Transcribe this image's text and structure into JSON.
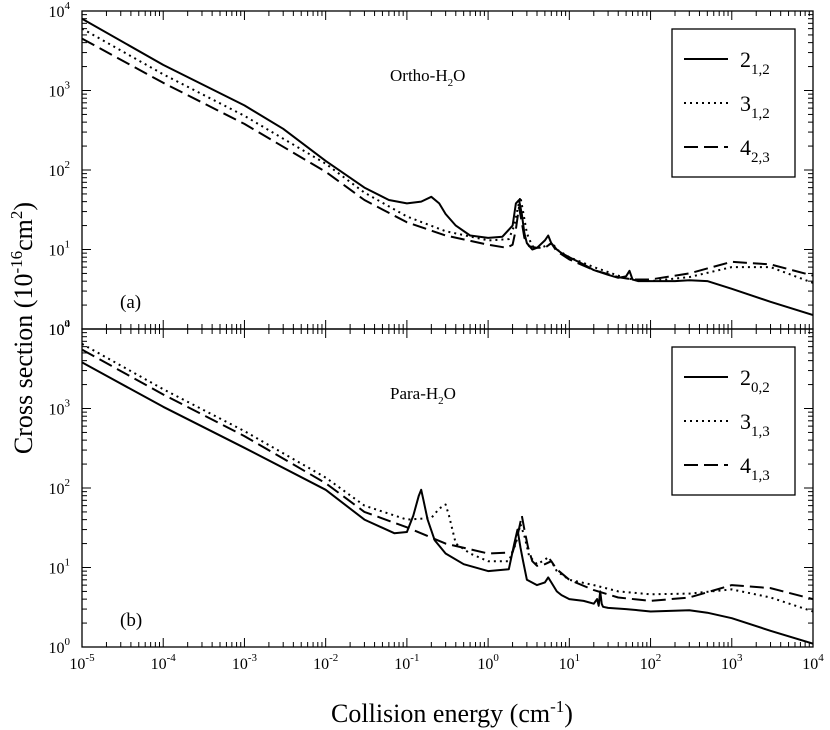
{
  "figure": {
    "xlabel": "Collision energy (cm",
    "xlabel_sup": "-1",
    "xlabel_end": ")",
    "ylabel": "Cross section (10",
    "ylabel_sup": "-16",
    "ylabel_mid": "cm",
    "ylabel_sup2": "2",
    "ylabel_end": ")"
  },
  "chart_data": [
    {
      "type": "line",
      "panel_label": "(a)",
      "annotation": "Ortho-H",
      "annotation_sub": "2",
      "annotation_end": "O",
      "xscale": "log",
      "yscale": "log",
      "xlim": [
        1e-05,
        10000.0
      ],
      "ylim": [
        1,
        10000.0
      ],
      "x_tick_labels": [
        "10-5",
        "10-4",
        "10-3",
        "10-2",
        "10-1",
        "100",
        "101",
        "102",
        "103",
        "104"
      ],
      "y_tick_labels": [
        "100",
        "101",
        "102",
        "103",
        "104"
      ],
      "legend_position": "top-right",
      "series": [
        {
          "name": "2",
          "sub": "1,2",
          "style": "solid",
          "x": [
            1e-05,
            0.0001,
            0.001,
            0.003,
            0.01,
            0.03,
            0.06,
            0.1,
            0.15,
            0.2,
            0.25,
            0.3,
            0.4,
            0.6,
            1,
            1.5,
            2,
            2.2,
            2.4,
            2.6,
            2.8,
            3,
            3.5,
            4,
            5,
            5.5,
            6,
            7,
            8,
            10,
            15,
            20,
            30,
            40,
            50,
            55,
            60,
            70,
            100,
            200,
            300,
            500,
            1000,
            3000,
            10000
          ],
          "y": [
            8000,
            2100,
            650,
            330,
            130,
            60,
            42,
            38,
            40,
            46,
            38,
            28,
            20,
            15,
            14,
            14.5,
            20,
            38,
            42,
            28,
            16,
            12,
            10,
            10.5,
            13,
            15,
            12,
            10,
            9,
            8,
            6.5,
            5.5,
            4.8,
            4.4,
            4.6,
            5.4,
            4.2,
            4,
            4,
            4,
            4.1,
            4,
            3.2,
            2.2,
            1.5
          ]
        },
        {
          "name": "3",
          "sub": "1,2",
          "style": "dotted",
          "x": [
            1e-05,
            0.0001,
            0.001,
            0.01,
            0.03,
            0.1,
            0.3,
            1,
            1.8,
            2.1,
            2.3,
            2.5,
            2.7,
            3,
            3.5,
            4.5,
            5.5,
            6.2,
            7,
            10,
            20,
            40,
            60,
            100,
            300,
            1000,
            3000,
            10000
          ],
          "y": [
            6000,
            1600,
            480,
            120,
            52,
            26,
            17,
            13,
            13.5,
            20,
            32,
            46,
            30,
            16,
            11,
            10.5,
            11.5,
            12,
            10,
            8,
            6,
            4.7,
            4.2,
            4,
            4.5,
            6,
            6,
            3.8
          ]
        },
        {
          "name": "4",
          "sub": "2,3",
          "style": "dashed",
          "x": [
            1e-05,
            0.0001,
            0.001,
            0.01,
            0.03,
            0.1,
            0.3,
            1,
            1.7,
            2,
            2.2,
            2.4,
            2.6,
            2.8,
            3.2,
            4,
            5,
            6,
            7,
            10,
            20,
            40,
            60,
            100,
            300,
            1000,
            3000,
            10000
          ],
          "y": [
            4500,
            1250,
            380,
            95,
            42,
            22,
            15,
            11.5,
            10.5,
            11.5,
            18,
            34,
            22,
            14,
            11,
            10.5,
            10.5,
            12,
            9.5,
            7.5,
            5.5,
            4.5,
            4.2,
            4.2,
            5,
            7,
            6.5,
            4.7
          ]
        }
      ]
    },
    {
      "type": "line",
      "panel_label": "(b)",
      "annotation": "Para-H",
      "annotation_sub": "2",
      "annotation_end": "O",
      "xscale": "log",
      "yscale": "log",
      "xlim": [
        1e-05,
        10000.0
      ],
      "ylim": [
        1,
        10000.0
      ],
      "x_tick_labels": [
        "10-5",
        "10-4",
        "10-3",
        "10-2",
        "10-1",
        "100",
        "101",
        "102",
        "103",
        "104"
      ],
      "y_tick_labels": [
        "100",
        "101",
        "102",
        "103",
        "104"
      ],
      "legend_position": "top-right",
      "series": [
        {
          "name": "2",
          "sub": "0,2",
          "style": "solid",
          "x": [
            1e-05,
            0.0001,
            0.001,
            0.01,
            0.03,
            0.07,
            0.1,
            0.12,
            0.14,
            0.15,
            0.16,
            0.18,
            0.22,
            0.3,
            0.5,
            1,
            1.8,
            2.1,
            2.3,
            2.5,
            2.7,
            3,
            4,
            5,
            5.5,
            6,
            7,
            8,
            10,
            15,
            20,
            22,
            23,
            24,
            25,
            26,
            30,
            50,
            70,
            100,
            300,
            500,
            1000,
            3000,
            10000
          ],
          "y": [
            3800,
            1050,
            320,
            95,
            40,
            27,
            28,
            45,
            80,
            95,
            70,
            40,
            22,
            15,
            11,
            9,
            9.5,
            20,
            30,
            18,
            12,
            7,
            6,
            6.5,
            7.5,
            6.5,
            5,
            4.5,
            4,
            3.8,
            3.5,
            4,
            3.3,
            5,
            3.5,
            3.2,
            3.1,
            3,
            2.9,
            2.8,
            2.9,
            2.7,
            2.3,
            1.6,
            1.1
          ]
        },
        {
          "name": "3",
          "sub": "1,3",
          "style": "dotted",
          "x": [
            1e-05,
            0.0001,
            0.001,
            0.01,
            0.03,
            0.1,
            0.2,
            0.25,
            0.3,
            0.33,
            0.4,
            0.6,
            1,
            1.8,
            2.2,
            2.5,
            2.8,
            3.2,
            4,
            5,
            5.5,
            6,
            7,
            10,
            20,
            40,
            100,
            300,
            1000,
            3000,
            10000
          ],
          "y": [
            6500,
            1750,
            520,
            135,
            60,
            40,
            42,
            55,
            62,
            45,
            20,
            15,
            12,
            12,
            20,
            35,
            25,
            14,
            11,
            12.5,
            13.5,
            12,
            9,
            7,
            6,
            5,
            4.6,
            4.7,
            5.3,
            4.2,
            2.8
          ]
        },
        {
          "name": "4",
          "sub": "1,3",
          "style": "dashed",
          "x": [
            1e-05,
            0.0001,
            0.001,
            0.01,
            0.03,
            0.1,
            0.3,
            1,
            2,
            2.3,
            2.6,
            2.8,
            3.1,
            3.5,
            4,
            5,
            6,
            7,
            10,
            20,
            40,
            100,
            300,
            1000,
            3000,
            10000
          ],
          "y": [
            5500,
            1500,
            450,
            115,
            50,
            32,
            20,
            15,
            15.5,
            25,
            45,
            30,
            18,
            12,
            10.5,
            11,
            12,
            9.5,
            7,
            5.2,
            4.2,
            3.8,
            4.2,
            6,
            5.5,
            4
          ]
        }
      ]
    }
  ]
}
